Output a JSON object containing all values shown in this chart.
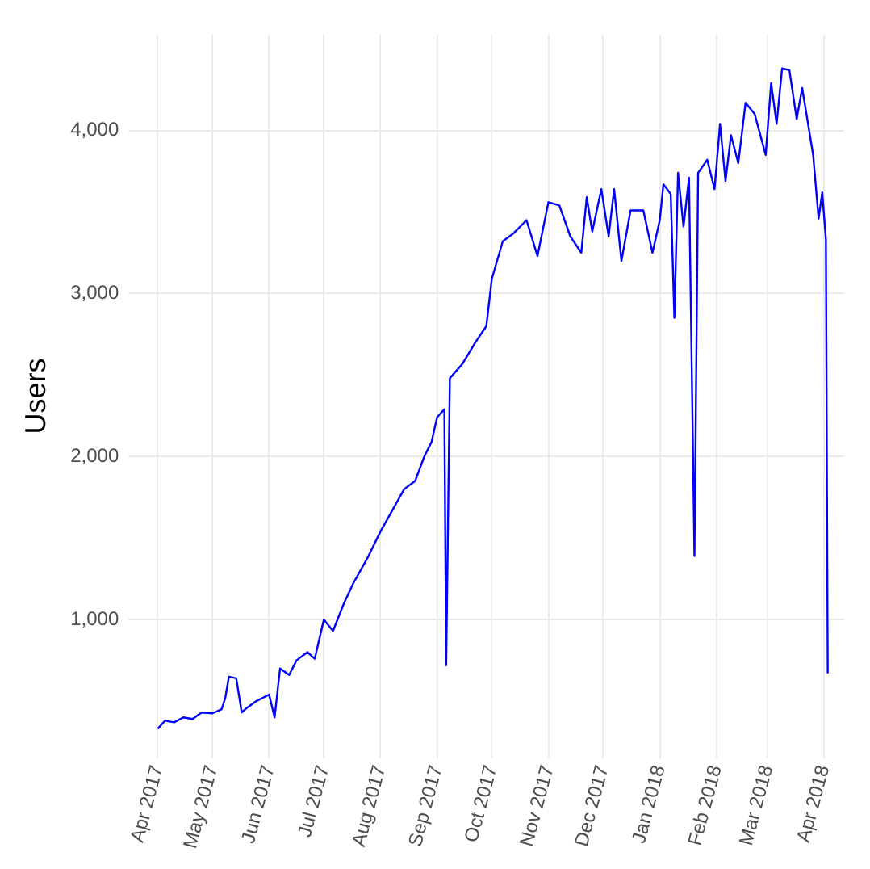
{
  "chart_data": {
    "type": "line",
    "ylabel": "Users",
    "x": [
      "2017-04-01",
      "2017-04-05",
      "2017-04-10",
      "2017-04-15",
      "2017-04-20",
      "2017-04-25",
      "2017-05-01",
      "2017-05-06",
      "2017-05-08",
      "2017-05-10",
      "2017-05-14",
      "2017-05-17",
      "2017-05-20",
      "2017-05-25",
      "2017-06-01",
      "2017-06-04",
      "2017-06-07",
      "2017-06-12",
      "2017-06-16",
      "2017-06-22",
      "2017-06-26",
      "2017-07-01",
      "2017-07-06",
      "2017-07-12",
      "2017-07-17",
      "2017-07-25",
      "2017-08-01",
      "2017-08-09",
      "2017-08-14",
      "2017-08-20",
      "2017-08-25",
      "2017-08-29",
      "2017-09-01",
      "2017-09-05",
      "2017-09-06",
      "2017-09-08",
      "2017-09-15",
      "2017-09-22",
      "2017-09-28",
      "2017-10-01",
      "2017-10-07",
      "2017-10-13",
      "2017-10-20",
      "2017-10-26",
      "2017-11-01",
      "2017-11-07",
      "2017-11-13",
      "2017-11-19",
      "2017-11-22",
      "2017-11-25",
      "2017-11-30",
      "2017-12-04",
      "2017-12-07",
      "2017-12-11",
      "2017-12-16",
      "2017-12-23",
      "2017-12-28",
      "2018-01-01",
      "2018-01-03",
      "2018-01-07",
      "2018-01-09",
      "2018-01-11",
      "2018-01-14",
      "2018-01-17",
      "2018-01-20",
      "2018-01-22",
      "2018-01-27",
      "2018-01-31",
      "2018-02-03",
      "2018-02-06",
      "2018-02-09",
      "2018-02-13",
      "2018-02-17",
      "2018-02-22",
      "2018-02-28",
      "2018-03-03",
      "2018-03-06",
      "2018-03-09",
      "2018-03-13",
      "2018-03-17",
      "2018-03-20",
      "2018-03-26",
      "2018-03-29",
      "2018-03-31",
      "2018-04-02",
      "2018-04-03"
    ],
    "series": [
      {
        "color": "#0000ff",
        "values": [
          330,
          380,
          370,
          400,
          390,
          430,
          425,
          450,
          520,
          650,
          640,
          430,
          460,
          500,
          540,
          400,
          700,
          660,
          750,
          800,
          760,
          1000,
          930,
          1100,
          1220,
          1380,
          1540,
          1700,
          1800,
          1850,
          2000,
          2090,
          2240,
          2290,
          720,
          2480,
          2570,
          2700,
          2800,
          3090,
          3320,
          3370,
          3450,
          3230,
          3560,
          3540,
          3350,
          3250,
          3590,
          3380,
          3640,
          3350,
          3640,
          3200,
          3510,
          3510,
          3250,
          3450,
          3670,
          3610,
          2850,
          3740,
          3410,
          3710,
          1390,
          3740,
          3820,
          3640,
          4040,
          3690,
          3970,
          3800,
          4170,
          4100,
          3850,
          4290,
          4040,
          4380,
          4370,
          4070,
          4260,
          3850,
          3460,
          3620,
          3330,
          670
        ]
      }
    ],
    "xlim": [
      "2017-03-16",
      "2018-04-12"
    ],
    "xticks": [
      {
        "value": "2017-04-01",
        "label": "Apr 2017"
      },
      {
        "value": "2017-05-01",
        "label": "May 2017"
      },
      {
        "value": "2017-06-01",
        "label": "Jun 2017"
      },
      {
        "value": "2017-07-01",
        "label": "Jul 2017"
      },
      {
        "value": "2017-08-01",
        "label": "Aug 2017"
      },
      {
        "value": "2017-09-01",
        "label": "Sep 2017"
      },
      {
        "value": "2017-10-01",
        "label": "Oct 2017"
      },
      {
        "value": "2017-11-01",
        "label": "Nov 2017"
      },
      {
        "value": "2017-12-01",
        "label": "Dec 2017"
      },
      {
        "value": "2018-01-01",
        "label": "Jan 2018"
      },
      {
        "value": "2018-02-01",
        "label": "Feb 2018"
      },
      {
        "value": "2018-03-01",
        "label": "Mar 2018"
      },
      {
        "value": "2018-04-01",
        "label": "Apr 2018"
      }
    ],
    "ylim": [
      150,
      4590
    ],
    "yticks": [
      {
        "value": 1000,
        "label": "1,000"
      },
      {
        "value": 2000,
        "label": "2,000"
      },
      {
        "value": 3000,
        "label": "3,000"
      },
      {
        "value": 4000,
        "label": "4,000"
      }
    ],
    "grid": true,
    "marker": "none",
    "line_style": "solid"
  }
}
